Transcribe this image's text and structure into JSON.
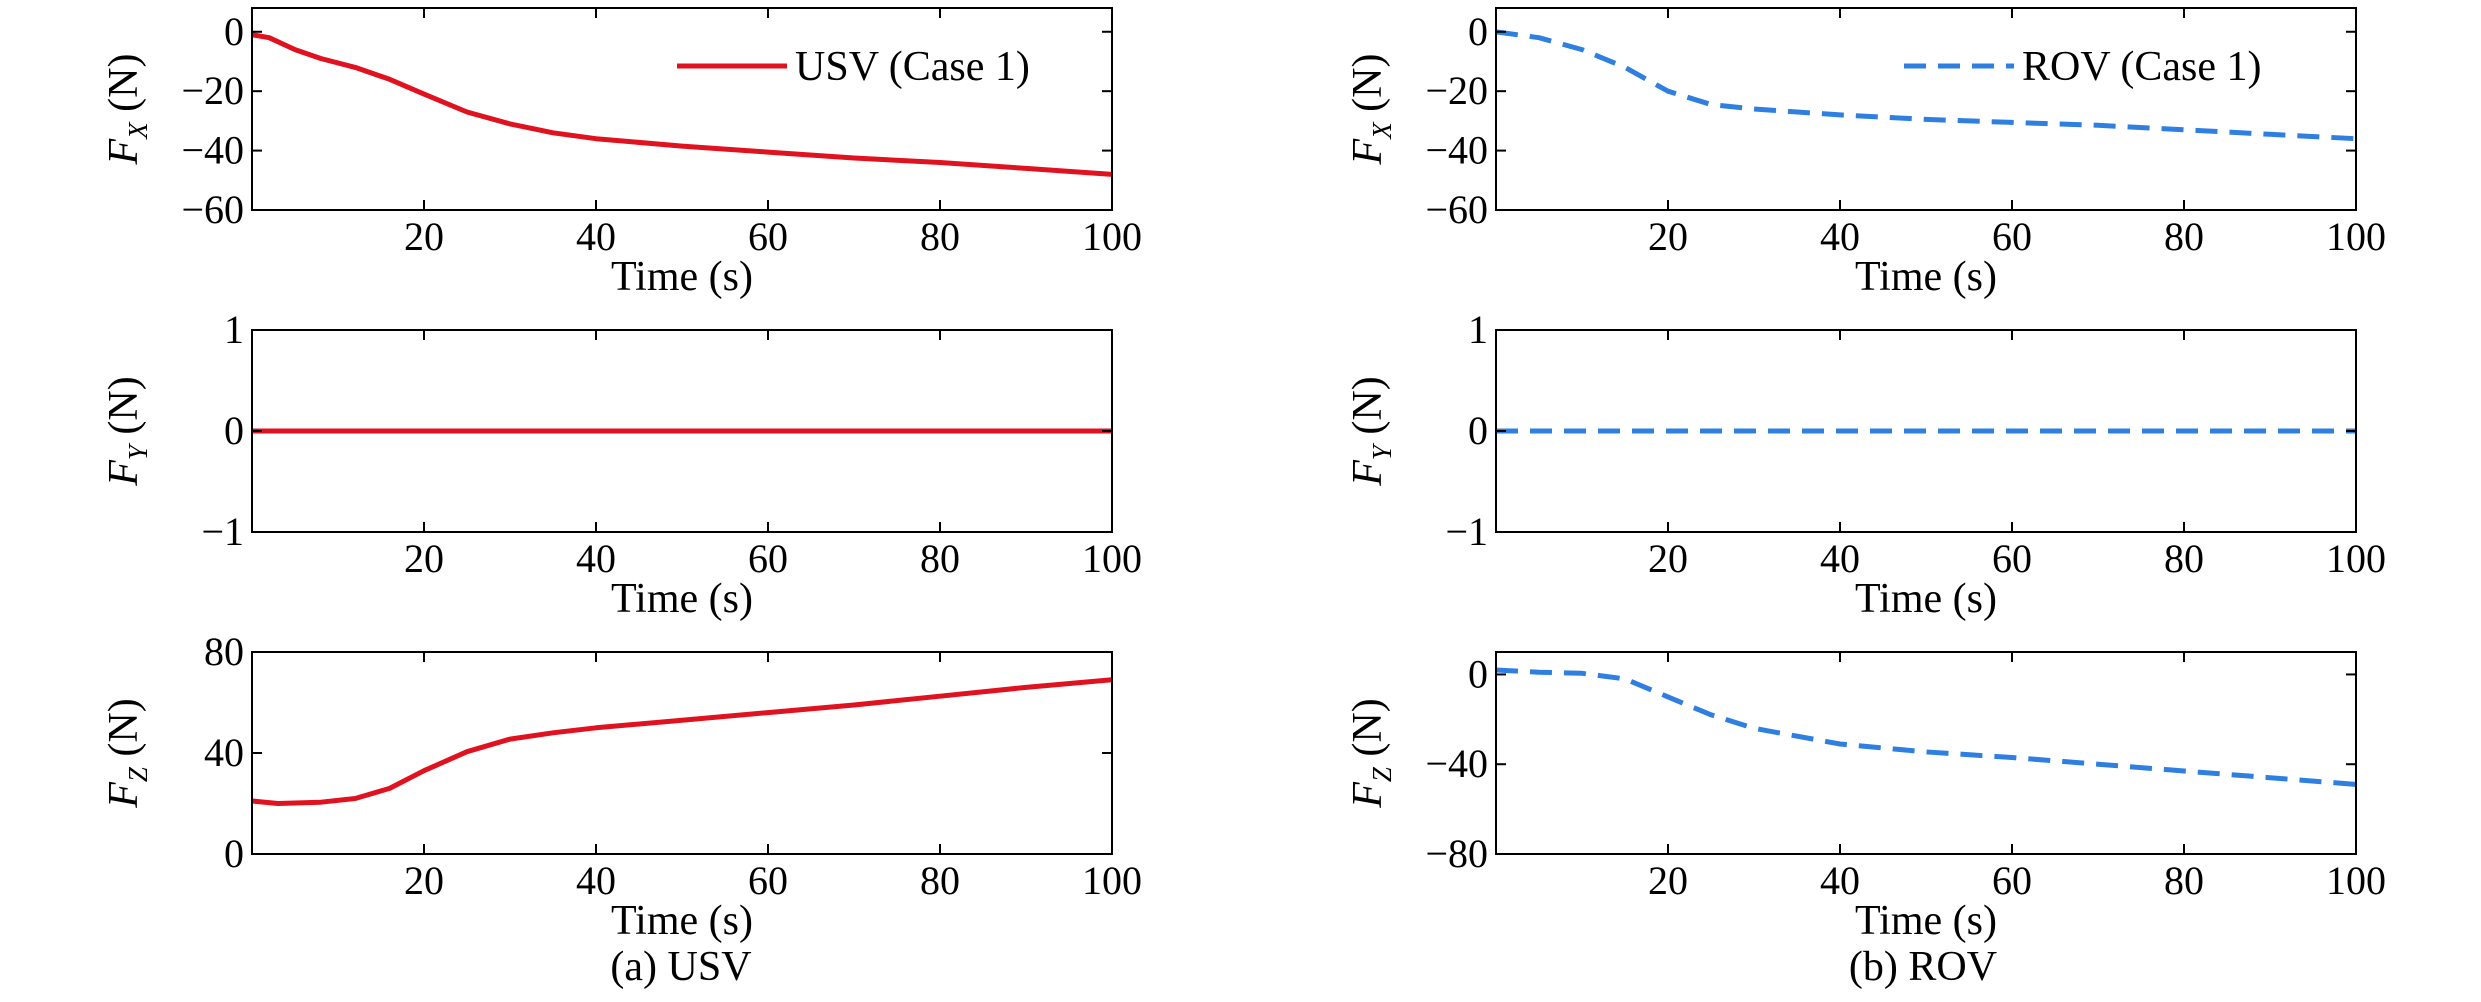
{
  "figure": {
    "captions": [
      "(a) USV",
      "(b) ROV"
    ]
  },
  "chart_data": [
    {
      "type": "line",
      "panel": "a-fx",
      "xlabel": "Time (s)",
      "ylabel_symbol": "F",
      "ylabel_sub": "X",
      "ylabel_unit": "(N)",
      "xlim": [
        0,
        100
      ],
      "ylim": [
        -60,
        8
      ],
      "xticks": [
        20,
        40,
        60,
        80,
        100
      ],
      "yticks": [
        0,
        -20,
        -40,
        -60
      ],
      "yticklabels": [
        "0",
        "−20",
        "−40",
        "−60"
      ],
      "legend": "top-right",
      "series": [
        {
          "name": "USV (Case 1)",
          "color": "#e0121f",
          "style": "solid",
          "x": [
            0,
            2,
            5,
            8,
            12,
            16,
            20,
            25,
            30,
            35,
            40,
            50,
            60,
            70,
            80,
            90,
            100
          ],
          "y": [
            -1,
            -2,
            -6,
            -9,
            -12,
            -16,
            -21,
            -27,
            -31,
            -34,
            -36,
            -38.5,
            -40.5,
            -42.5,
            -44,
            -46,
            -48
          ]
        }
      ]
    },
    {
      "type": "line",
      "panel": "a-fy",
      "xlabel": "Time (s)",
      "ylabel_symbol": "F",
      "ylabel_sub": "Y",
      "ylabel_unit": "(N)",
      "xlim": [
        0,
        100
      ],
      "ylim": [
        -1,
        1
      ],
      "xticks": [
        20,
        40,
        60,
        80,
        100
      ],
      "yticks": [
        1,
        0,
        -1
      ],
      "yticklabels": [
        "1",
        "0",
        "−1"
      ],
      "series": [
        {
          "name": "USV (Case 1)",
          "color": "#e0121f",
          "style": "solid",
          "x": [
            0,
            100
          ],
          "y": [
            0,
            0
          ]
        }
      ]
    },
    {
      "type": "line",
      "panel": "a-fz",
      "xlabel": "Time (s)",
      "ylabel_symbol": "F",
      "ylabel_sub": "Z",
      "ylabel_unit": "(N)",
      "xlim": [
        0,
        100
      ],
      "ylim": [
        0,
        80
      ],
      "xticks": [
        20,
        40,
        60,
        80,
        100
      ],
      "yticks": [
        80,
        40,
        0
      ],
      "yticklabels": [
        "80",
        "40",
        "0"
      ],
      "series": [
        {
          "name": "USV (Case 1)",
          "color": "#e0121f",
          "style": "solid",
          "x": [
            0,
            3,
            8,
            12,
            16,
            20,
            25,
            30,
            35,
            40,
            50,
            60,
            70,
            80,
            90,
            100
          ],
          "y": [
            21,
            20,
            20.5,
            22,
            26,
            33,
            40.5,
            45.5,
            48,
            50,
            53,
            56,
            59,
            62.5,
            66,
            69
          ]
        }
      ]
    },
    {
      "type": "line",
      "panel": "b-fx",
      "xlabel": "Time (s)",
      "ylabel_symbol": "F",
      "ylabel_sub": "X",
      "ylabel_unit": "(N)",
      "xlim": [
        0,
        100
      ],
      "ylim": [
        -60,
        8
      ],
      "xticks": [
        20,
        40,
        60,
        80,
        100
      ],
      "yticks": [
        0,
        -20,
        -40,
        -60
      ],
      "yticklabels": [
        "0",
        "−20",
        "−40",
        "−60"
      ],
      "legend": "top-right",
      "series": [
        {
          "name": "ROV (Case 1)",
          "color": "#2f7fe0",
          "style": "dashed",
          "x": [
            0,
            5,
            10,
            15,
            20,
            25,
            30,
            40,
            50,
            60,
            70,
            80,
            90,
            100
          ],
          "y": [
            0,
            -2,
            -6,
            -12,
            -20,
            -24.5,
            -26,
            -28,
            -29.5,
            -30.5,
            -31.5,
            -33,
            -34.5,
            -36
          ]
        }
      ]
    },
    {
      "type": "line",
      "panel": "b-fy",
      "xlabel": "Time (s)",
      "ylabel_symbol": "F",
      "ylabel_sub": "Y",
      "ylabel_unit": "(N)",
      "xlim": [
        0,
        100
      ],
      "ylim": [
        -1,
        1
      ],
      "xticks": [
        20,
        40,
        60,
        80,
        100
      ],
      "yticks": [
        1,
        0,
        -1
      ],
      "yticklabels": [
        "1",
        "0",
        "−1"
      ],
      "series": [
        {
          "name": "ROV (Case 1)",
          "color": "#2f7fe0",
          "style": "dashed",
          "x": [
            0,
            100
          ],
          "y": [
            0,
            0
          ]
        }
      ]
    },
    {
      "type": "line",
      "panel": "b-fz",
      "xlabel": "Time (s)",
      "ylabel_symbol": "F",
      "ylabel_sub": "Z",
      "ylabel_unit": "(N)",
      "xlim": [
        0,
        100
      ],
      "ylim": [
        -80,
        10
      ],
      "xticks": [
        20,
        40,
        60,
        80,
        100
      ],
      "yticks": [
        0,
        -40,
        -80
      ],
      "yticklabels": [
        "0",
        "−40",
        "−80"
      ],
      "series": [
        {
          "name": "ROV (Case 1)",
          "color": "#2f7fe0",
          "style": "dashed",
          "x": [
            0,
            5,
            10,
            15,
            20,
            25,
            30,
            40,
            50,
            60,
            70,
            80,
            90,
            100
          ],
          "y": [
            2,
            1,
            0.5,
            -2,
            -10,
            -18,
            -24,
            -31,
            -34.5,
            -37,
            -40,
            -43,
            -46,
            -49
          ]
        }
      ]
    }
  ]
}
